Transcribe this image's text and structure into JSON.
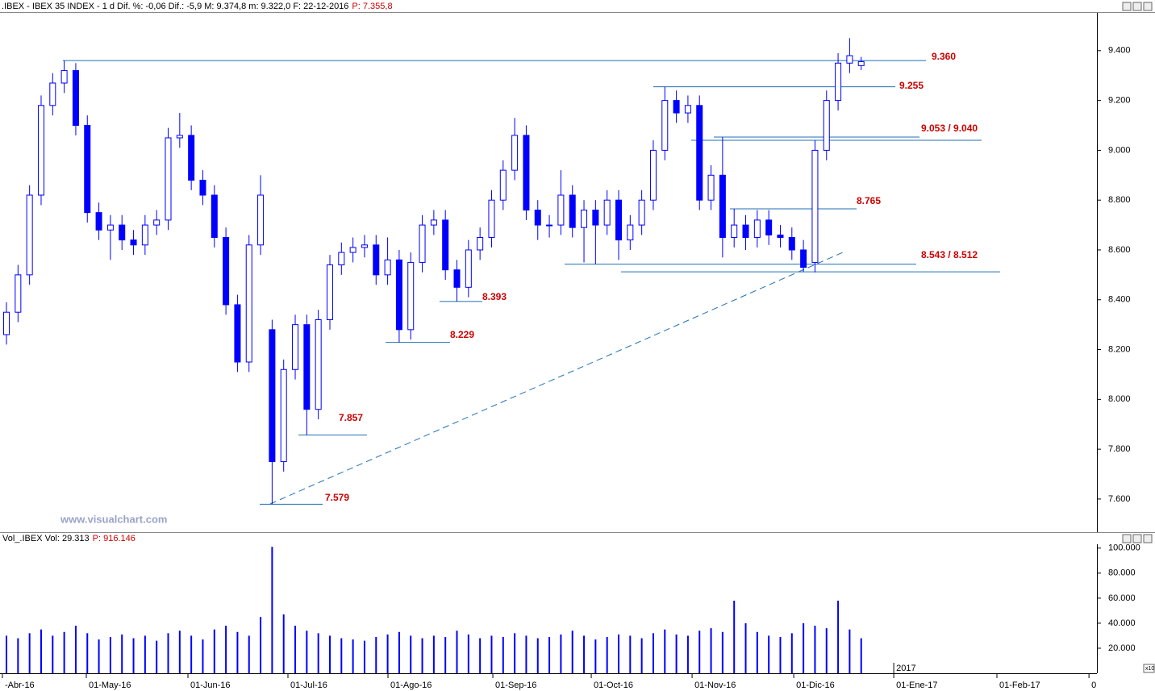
{
  "header": {
    "text": ".IBEX - IBEX 35 INDEX - 1 d Dif. %: -0,06 Dif.: -5,9 M: 9.374,8 m: 9.322,0 F: 22-12-2016",
    "price": "P: 7.355,8"
  },
  "watermark": "www.visualchart.com",
  "chart_data": [
    {
      "type": "candlestick",
      "color": "#0000ff",
      "open": [
        8260,
        8350,
        8500,
        8820,
        9180,
        9270,
        9320,
        9100,
        8750,
        8680,
        8700,
        8640,
        8620,
        8700,
        8720,
        9050,
        9060,
        8880,
        8820,
        8650,
        8380,
        8150,
        8620,
        8280,
        7750,
        8120,
        8300,
        7960,
        8320,
        8540,
        8590,
        8610,
        8620,
        8500,
        8560,
        8280,
        8550,
        8700,
        8720,
        8520,
        8450,
        8600,
        8650,
        8800,
        8920,
        9060,
        8760,
        8700,
        8700,
        8820,
        8690,
        8760,
        8700,
        8800,
        8640,
        8700,
        8800,
        9000,
        9200,
        9150,
        9180,
        8800,
        8900,
        8650,
        8700,
        8650,
        8720,
        8660,
        8650,
        8600,
        8550,
        9000,
        9200,
        9350,
        9340
      ],
      "high": [
        8390,
        8540,
        8860,
        9220,
        9310,
        9360,
        9350,
        9140,
        8790,
        8740,
        8740,
        8680,
        8740,
        8760,
        9090,
        9150,
        9100,
        8920,
        8860,
        8690,
        8420,
        8660,
        8900,
        8320,
        8160,
        8340,
        8340,
        8360,
        8580,
        8630,
        8650,
        8660,
        8660,
        8650,
        8600,
        8590,
        8740,
        8760,
        8760,
        8560,
        8640,
        8690,
        8840,
        8960,
        9130,
        9100,
        8800,
        8740,
        8920,
        8860,
        8800,
        8800,
        8840,
        8840,
        8740,
        8840,
        9040,
        9255,
        9240,
        9220,
        9220,
        8940,
        9053,
        8765,
        8740,
        8760,
        8760,
        8700,
        8690,
        8640,
        9040,
        9240,
        9390,
        9450,
        9375
      ],
      "low": [
        8220,
        8310,
        8460,
        8780,
        9140,
        9230,
        9060,
        8710,
        8640,
        8560,
        8600,
        8580,
        8580,
        8660,
        8680,
        9010,
        8840,
        8780,
        8610,
        8340,
        8110,
        8110,
        8580,
        7579,
        7710,
        8080,
        7857,
        7920,
        8280,
        8500,
        8550,
        8570,
        8460,
        8460,
        8229,
        8240,
        8510,
        8660,
        8480,
        8393,
        8410,
        8560,
        8610,
        8760,
        8880,
        8720,
        8640,
        8650,
        8660,
        8650,
        8550,
        8543,
        8660,
        8560,
        8600,
        8660,
        8760,
        8960,
        9110,
        9110,
        8760,
        8760,
        8570,
        8610,
        8600,
        8610,
        8620,
        8610,
        8560,
        8512,
        8510,
        8960,
        9160,
        9310,
        9322
      ],
      "close": [
        8350,
        8500,
        8820,
        9180,
        9270,
        9320,
        9100,
        8750,
        8680,
        8700,
        8640,
        8620,
        8700,
        8720,
        9050,
        9060,
        8880,
        8820,
        8650,
        8380,
        8150,
        8620,
        8820,
        7750,
        8120,
        8300,
        7960,
        8320,
        8540,
        8590,
        8610,
        8620,
        8500,
        8560,
        8280,
        8550,
        8700,
        8720,
        8520,
        8450,
        8600,
        8650,
        8800,
        8920,
        9060,
        8760,
        8700,
        8700,
        8820,
        8690,
        8760,
        8700,
        8800,
        8640,
        8700,
        8800,
        9000,
        9200,
        9150,
        9180,
        8800,
        8900,
        8650,
        8700,
        8650,
        8720,
        8660,
        8650,
        8600,
        8530,
        9000,
        9200,
        9350,
        9380,
        9356
      ],
      "ylim": [
        7467,
        9571
      ],
      "yticks": [
        {
          "value": 7600,
          "label": "7.600"
        },
        {
          "value": 7800,
          "label": "7.800"
        },
        {
          "value": 8000,
          "label": "8.000"
        },
        {
          "value": 8200,
          "label": "8.200"
        },
        {
          "value": 8400,
          "label": "8.400"
        },
        {
          "value": 8600,
          "label": "8.600"
        },
        {
          "value": 8800,
          "label": "8.800"
        },
        {
          "value": 9000,
          "label": "9.000"
        },
        {
          "value": 9200,
          "label": "9.200"
        },
        {
          "value": 9400,
          "label": "9.400"
        }
      ],
      "xlim": [
        -0.56,
        94.41
      ],
      "xticks": [
        {
          "value": -0.35,
          "label": "-Abr-16"
        },
        {
          "value": 6.91,
          "label": "01-May-16"
        },
        {
          "value": 15.71,
          "label": "01-Jun-16"
        },
        {
          "value": 24.37,
          "label": "01-Jul-16"
        },
        {
          "value": 33.03,
          "label": "01-Ago-16"
        },
        {
          "value": 42.11,
          "label": "01-Sep-16"
        },
        {
          "value": 50.63,
          "label": "01-Oct-16"
        },
        {
          "value": 59.36,
          "label": "01-Nov-16"
        },
        {
          "value": 68.16,
          "label": "01-Dic-16"
        },
        {
          "value": 76.82,
          "label": "01-Ene-17"
        },
        {
          "value": 85.75,
          "label": "01-Feb-17"
        },
        {
          "value": 93.72,
          "label": "0"
        }
      ],
      "year_label": "2017",
      "level_color": "#1f6fb5",
      "levels": [
        {
          "values": [
            9360
          ],
          "label": "9.360"
        },
        {
          "values": [
            9255
          ],
          "label": "9.255"
        },
        {
          "values": [
            9053,
            9040
          ],
          "label": "9.053 / 9.040"
        },
        {
          "values": [
            8765
          ],
          "label": "8.765"
        },
        {
          "values": [
            8543,
            8512
          ],
          "label": "8.543 / 8.512"
        },
        {
          "values": [
            8393
          ],
          "label": "8.393"
        },
        {
          "values": [
            8229
          ],
          "label": "8.229"
        },
        {
          "values": [
            7857
          ],
          "label": "7.857"
        },
        {
          "values": [
            7579
          ],
          "label": "7.579"
        }
      ]
    },
    {
      "type": "bar",
      "title": "Vol_.IBEX Vol: 29.313",
      "subtitle": "P: 916.146",
      "color": "#0000ff",
      "scale_note": "x10",
      "values": [
        30000,
        28000,
        32000,
        35000,
        30000,
        33000,
        38000,
        32000,
        27000,
        29000,
        31000,
        28000,
        30000,
        26000,
        32000,
        34000,
        30000,
        27000,
        35000,
        38000,
        33000,
        30000,
        45000,
        101000,
        47000,
        38000,
        34000,
        32000,
        30000,
        28000,
        27000,
        26000,
        29000,
        31000,
        33000,
        30000,
        28000,
        30000,
        29000,
        34000,
        31000,
        28000,
        30000,
        29000,
        32000,
        30000,
        28000,
        29000,
        31000,
        34000,
        30000,
        27000,
        29000,
        31000,
        30000,
        28000,
        32000,
        35000,
        31000,
        30000,
        34000,
        36000,
        33000,
        58000,
        40000,
        33000,
        30000,
        29000,
        32000,
        40000,
        38000,
        36000,
        58000,
        35000,
        28000
      ],
      "ylim": [
        0,
        105000
      ],
      "yticks": [
        {
          "value": 20000,
          "label": "20.000"
        },
        {
          "value": 40000,
          "label": "40.000"
        },
        {
          "value": 60000,
          "label": "60.000"
        },
        {
          "value": 80000,
          "label": "80.000"
        },
        {
          "value": 100000,
          "label": "100.000"
        }
      ]
    }
  ]
}
